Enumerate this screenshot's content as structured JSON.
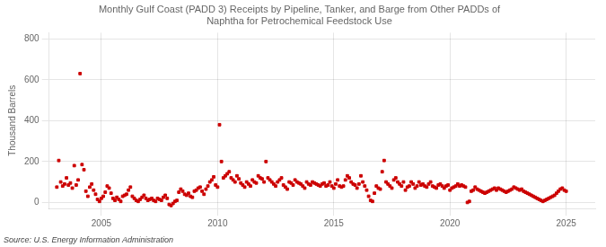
{
  "chart_data": {
    "type": "scatter",
    "title": "Monthly Gulf Coast (PADD 3) Receipts by Pipeline, Tanker, and Barge from Other PADDs of\nNaphtha for Petrochemical Feedstock Use",
    "y_label": "Thousand Barrels",
    "annotations": [
      "Source: U.S. Energy Information Administration"
    ],
    "color": "#cc0000",
    "marker": "square",
    "grid": true,
    "xlim": [
      2002.75,
      2026.25
    ],
    "xticks": [
      2005,
      2010,
      2015,
      2020,
      2025
    ],
    "ylim": [
      -30,
      830
    ],
    "yticks": [
      0,
      200,
      400,
      600,
      800
    ],
    "x": [
      2003.0833,
      2003.1667,
      2003.25,
      2003.3333,
      2003.4167,
      2003.5,
      2003.5833,
      2003.6667,
      2003.75,
      2003.8333,
      2003.9167,
      2004,
      2004.0833,
      2004.1667,
      2004.25,
      2004.3333,
      2004.4167,
      2004.5,
      2004.5833,
      2004.6667,
      2004.75,
      2004.8333,
      2004.9167,
      2005,
      2005.0833,
      2005.1667,
      2005.25,
      2005.3333,
      2005.4167,
      2005.5,
      2005.5833,
      2005.6667,
      2005.75,
      2005.8333,
      2005.9167,
      2006,
      2006.0833,
      2006.1667,
      2006.25,
      2006.3333,
      2006.4167,
      2006.5,
      2006.5833,
      2006.6667,
      2006.75,
      2006.8333,
      2006.9167,
      2007,
      2007.0833,
      2007.1667,
      2007.25,
      2007.3333,
      2007.4167,
      2007.5,
      2007.5833,
      2007.6667,
      2007.75,
      2007.8333,
      2007.9167,
      2008,
      2008.0833,
      2008.1667,
      2008.25,
      2008.3333,
      2008.4167,
      2008.5,
      2008.5833,
      2008.6667,
      2008.75,
      2008.8333,
      2008.9167,
      2009,
      2009.0833,
      2009.1667,
      2009.25,
      2009.3333,
      2009.4167,
      2009.5,
      2009.5833,
      2009.6667,
      2009.75,
      2009.8333,
      2009.9167,
      2010,
      2010.0833,
      2010.1667,
      2010.25,
      2010.3333,
      2010.4167,
      2010.5,
      2010.5833,
      2010.6667,
      2010.75,
      2010.8333,
      2010.9167,
      2011,
      2011.0833,
      2011.1667,
      2011.25,
      2011.3333,
      2011.4167,
      2011.5,
      2011.5833,
      2011.6667,
      2011.75,
      2011.8333,
      2011.9167,
      2012,
      2012.0833,
      2012.1667,
      2012.25,
      2012.3333,
      2012.4167,
      2012.5,
      2012.5833,
      2012.6667,
      2012.75,
      2012.8333,
      2012.9167,
      2013,
      2013.0833,
      2013.1667,
      2013.25,
      2013.3333,
      2013.4167,
      2013.5,
      2013.5833,
      2013.6667,
      2013.75,
      2013.8333,
      2013.9167,
      2014,
      2014.0833,
      2014.1667,
      2014.25,
      2014.3333,
      2014.4167,
      2014.5,
      2014.5833,
      2014.6667,
      2014.75,
      2014.8333,
      2014.9167,
      2015,
      2015.0833,
      2015.1667,
      2015.25,
      2015.3333,
      2015.4167,
      2015.5,
      2015.5833,
      2015.6667,
      2015.75,
      2015.8333,
      2015.9167,
      2016,
      2016.0833,
      2016.1667,
      2016.25,
      2016.3333,
      2016.4167,
      2016.5,
      2016.5833,
      2016.6667,
      2016.75,
      2016.8333,
      2016.9167,
      2017,
      2017.0833,
      2017.1667,
      2017.25,
      2017.3333,
      2017.4167,
      2017.5,
      2017.5833,
      2017.6667,
      2017.75,
      2017.8333,
      2017.9167,
      2018,
      2018.0833,
      2018.1667,
      2018.25,
      2018.3333,
      2018.4167,
      2018.5,
      2018.5833,
      2018.6667,
      2018.75,
      2018.8333,
      2018.9167,
      2019,
      2019.0833,
      2019.1667,
      2019.25,
      2019.3333,
      2019.4167,
      2019.5,
      2019.5833,
      2019.6667,
      2019.75,
      2019.8333,
      2019.9167,
      2020,
      2020.0833,
      2020.1667,
      2020.25,
      2020.3333,
      2020.4167,
      2020.5,
      2020.5833,
      2020.6667,
      2020.75,
      2020.8333,
      2020.9167,
      2021,
      2021.0833,
      2021.1667,
      2021.25,
      2021.3333,
      2021.4167,
      2021.5,
      2021.5833,
      2021.6667,
      2021.75,
      2021.8333,
      2021.9167,
      2022,
      2022.0833,
      2022.1667,
      2022.25,
      2022.3333,
      2022.4167,
      2022.5,
      2022.5833,
      2022.6667,
      2022.75,
      2022.8333,
      2022.9167,
      2023,
      2023.0833,
      2023.1667,
      2023.25,
      2023.3333,
      2023.4167,
      2023.5,
      2023.5833,
      2023.6667,
      2023.75,
      2023.8333,
      2023.9167,
      2024,
      2024.0833,
      2024.1667,
      2024.25,
      2024.3333,
      2024.4167,
      2024.5,
      2024.5833,
      2024.6667,
      2024.75,
      2024.8333,
      2024.9167,
      2025
    ],
    "values": [
      75,
      205,
      100,
      80,
      90,
      120,
      85,
      95,
      70,
      180,
      85,
      110,
      630,
      185,
      160,
      55,
      30,
      75,
      90,
      60,
      40,
      15,
      5,
      20,
      30,
      50,
      80,
      70,
      45,
      20,
      10,
      25,
      15,
      5,
      30,
      35,
      40,
      60,
      75,
      30,
      20,
      10,
      5,
      15,
      25,
      35,
      20,
      10,
      15,
      20,
      10,
      5,
      20,
      15,
      10,
      25,
      35,
      20,
      -10,
      -15,
      -5,
      5,
      10,
      50,
      65,
      55,
      40,
      35,
      45,
      30,
      25,
      55,
      60,
      70,
      75,
      55,
      40,
      65,
      80,
      100,
      110,
      125,
      85,
      75,
      380,
      200,
      120,
      130,
      140,
      150,
      120,
      110,
      100,
      130,
      115,
      95,
      85,
      75,
      100,
      90,
      80,
      110,
      100,
      95,
      130,
      120,
      115,
      100,
      200,
      120,
      110,
      100,
      90,
      80,
      100,
      110,
      120,
      85,
      75,
      65,
      100,
      95,
      85,
      110,
      100,
      95,
      90,
      80,
      70,
      100,
      90,
      85,
      100,
      95,
      90,
      85,
      80,
      90,
      95,
      80,
      85,
      100,
      80,
      70,
      90,
      110,
      80,
      75,
      80,
      110,
      130,
      120,
      100,
      90,
      85,
      70,
      90,
      130,
      100,
      80,
      60,
      30,
      10,
      5,
      45,
      80,
      70,
      65,
      150,
      205,
      100,
      90,
      80,
      70,
      110,
      120,
      100,
      90,
      80,
      100,
      60,
      75,
      80,
      100,
      90,
      70,
      80,
      100,
      85,
      90,
      80,
      75,
      90,
      100,
      80,
      75,
      70,
      85,
      90,
      80,
      70,
      80,
      85,
      60,
      70,
      75,
      80,
      90,
      80,
      85,
      80,
      75,
      0,
      5,
      55,
      60,
      75,
      65,
      60,
      55,
      50,
      45,
      50,
      55,
      60,
      65,
      70,
      60,
      70,
      65,
      60,
      55,
      50,
      55,
      60,
      65,
      75,
      70,
      65,
      60,
      65,
      55,
      50,
      45,
      40,
      35,
      30,
      25,
      20,
      15,
      10,
      5,
      10,
      15,
      20,
      25,
      30,
      35,
      45,
      55,
      65,
      70,
      60,
      55
    ]
  }
}
